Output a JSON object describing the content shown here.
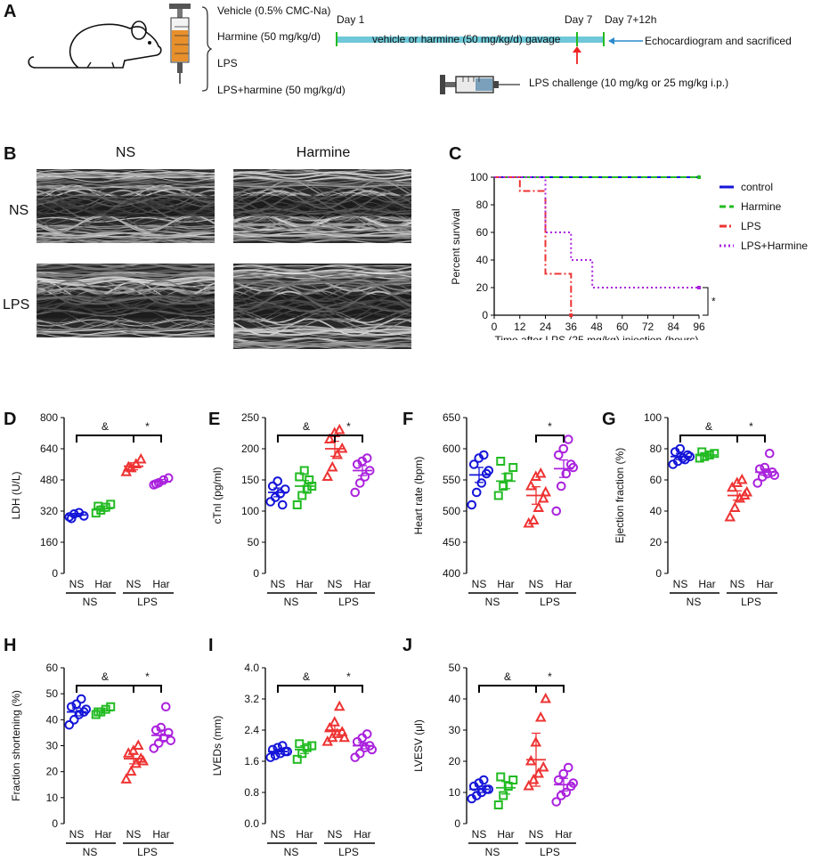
{
  "panel_a": {
    "letter": "A",
    "groups": [
      "Vehicle (0.5% CMC-Na)",
      "Harmine (50 mg/kg/d)",
      "LPS",
      "LPS+harmine (50 mg/kg/d)"
    ],
    "day1": "Day 1",
    "day7": "Day 7",
    "day7_12h": "Day 7+12h",
    "gavage": "vehicle or harmine (50 mg/kg/d) gavage",
    "echo_label": "Echocardiogram and sacrificed",
    "lps_challenge": "LPS challenge (10 mg/kg or 25 mg/kg i.p.)"
  },
  "panel_b": {
    "letter": "B",
    "col_ns": "NS",
    "col_harmine": "Harmine",
    "row_ns": "NS",
    "row_lps": "LPS"
  },
  "colors": {
    "blue": "#1515d9",
    "green": "#22bb22",
    "red": "#ee3333",
    "purple": "#aa22dd",
    "timeline": "#6fc8d8"
  },
  "chart_data": [
    {
      "panel": "C",
      "type": "line",
      "subtype": "kaplan-meier",
      "ylabel": "Percent survival",
      "xlabel": "Time after LPS (25 mg/kg) injection (hours)",
      "xlim": [
        0,
        96
      ],
      "ylim": [
        0,
        100
      ],
      "xticks": [
        0,
        12,
        24,
        36,
        48,
        60,
        72,
        84,
        96
      ],
      "yticks": [
        0,
        20,
        40,
        60,
        80,
        100
      ],
      "significance": "*",
      "series": [
        {
          "name": "control",
          "color": "#1515d9",
          "dash": "solid",
          "steps": [
            [
              0,
              100
            ],
            [
              96,
              100
            ]
          ]
        },
        {
          "name": "Harmine",
          "color": "#22bb22",
          "dash": "dash",
          "steps": [
            [
              0,
              100
            ],
            [
              96,
              100
            ]
          ]
        },
        {
          "name": "LPS",
          "color": "#ee3333",
          "dash": "dashdot",
          "steps": [
            [
              0,
              100
            ],
            [
              12,
              100
            ],
            [
              12,
              90
            ],
            [
              24,
              90
            ],
            [
              24,
              30
            ],
            [
              36,
              30
            ],
            [
              36,
              0
            ]
          ]
        },
        {
          "name": "LPS+Harmine",
          "color": "#aa22dd",
          "dash": "dot",
          "steps": [
            [
              0,
              100
            ],
            [
              24,
              100
            ],
            [
              24,
              60
            ],
            [
              36,
              60
            ],
            [
              36,
              40
            ],
            [
              46,
              40
            ],
            [
              46,
              20
            ],
            [
              96,
              20
            ]
          ]
        }
      ]
    },
    {
      "panel": "D",
      "type": "scatter",
      "ylabel": "LDH (U/L)",
      "ylim": [
        0,
        800
      ],
      "yticks": [
        0,
        160,
        320,
        480,
        640,
        800
      ],
      "categories": [
        "NS",
        "Har",
        "NS",
        "Har"
      ],
      "groups": [
        "NS",
        "LPS"
      ],
      "marks": {
        "left": "&",
        "right": "*"
      },
      "series": [
        {
          "name": "NS-NS",
          "marker": "circle",
          "color": "#1515d9",
          "mean": 300,
          "sem": 8,
          "points": [
            290,
            305,
            312,
            295,
            282
          ]
        },
        {
          "name": "NS-Har",
          "marker": "square",
          "color": "#22bb22",
          "mean": 333,
          "sem": 14,
          "points": [
            310,
            325,
            340,
            355,
            345
          ]
        },
        {
          "name": "LPS-NS",
          "marker": "triangle",
          "color": "#ee3333",
          "mean": 550,
          "sem": 18,
          "points": [
            520,
            540,
            560,
            585,
            545
          ]
        },
        {
          "name": "LPS-Har",
          "marker": "circle",
          "color": "#aa22dd",
          "mean": 470,
          "sem": 12,
          "points": [
            455,
            465,
            480,
            490,
            460
          ]
        }
      ]
    },
    {
      "panel": "E",
      "type": "scatter",
      "ylabel": "cTnI (pg/ml)",
      "ylim": [
        0,
        250
      ],
      "yticks": [
        0,
        50,
        100,
        150,
        200,
        250
      ],
      "categories": [
        "NS",
        "Har",
        "NS",
        "Har"
      ],
      "groups": [
        "NS",
        "LPS"
      ],
      "marks": {
        "left": "&",
        "right": "*"
      },
      "series": [
        {
          "name": "NS-NS",
          "marker": "circle",
          "color": "#1515d9",
          "mean": 130,
          "sem": 7,
          "points": [
            115,
            122,
            128,
            135,
            140,
            148,
            110
          ]
        },
        {
          "name": "NS-Har",
          "marker": "square",
          "color": "#22bb22",
          "mean": 140,
          "sem": 9,
          "points": [
            110,
            125,
            135,
            140,
            155,
            165,
            150
          ]
        },
        {
          "name": "LPS-NS",
          "marker": "triangle",
          "color": "#ee3333",
          "mean": 200,
          "sem": 12,
          "points": [
            155,
            170,
            190,
            200,
            215,
            225,
            230
          ]
        },
        {
          "name": "LPS-Har",
          "marker": "circle",
          "color": "#aa22dd",
          "mean": 165,
          "sem": 8,
          "points": [
            130,
            145,
            155,
            165,
            175,
            180,
            185
          ]
        }
      ]
    },
    {
      "panel": "F",
      "type": "scatter",
      "ylabel": "Heart rate (bpm)",
      "ylim": [
        400,
        650
      ],
      "yticks": [
        400,
        450,
        500,
        550,
        600,
        650
      ],
      "categories": [
        "NS",
        "Har",
        "NS",
        "Har"
      ],
      "groups": [
        "NS",
        "LPS"
      ],
      "marks": {
        "right": "*"
      },
      "series": [
        {
          "name": "NS-NS",
          "marker": "circle",
          "color": "#1515d9",
          "mean": 558,
          "sem": 12,
          "points": [
            510,
            530,
            545,
            560,
            575,
            585,
            590,
            565
          ]
        },
        {
          "name": "NS-Har",
          "marker": "square",
          "color": "#22bb22",
          "mean": 548,
          "sem": 12,
          "points": [
            525,
            540,
            555,
            570,
            580
          ]
        },
        {
          "name": "LPS-NS",
          "marker": "triangle",
          "color": "#ee3333",
          "mean": 525,
          "sem": 14,
          "points": [
            480,
            485,
            505,
            520,
            540,
            555,
            560,
            530
          ]
        },
        {
          "name": "LPS-Har",
          "marker": "circle",
          "color": "#aa22dd",
          "mean": 568,
          "sem": 14,
          "points": [
            500,
            540,
            560,
            575,
            590,
            600,
            615,
            570
          ]
        }
      ]
    },
    {
      "panel": "G",
      "type": "scatter",
      "ylabel": "Ejection fraction (%)",
      "ylim": [
        0,
        100
      ],
      "yticks": [
        0,
        20,
        40,
        60,
        80,
        100
      ],
      "categories": [
        "NS",
        "Har",
        "NS",
        "Har"
      ],
      "groups": [
        "NS",
        "LPS"
      ],
      "marks": {
        "left": "&",
        "right": "*"
      },
      "series": [
        {
          "name": "NS-NS",
          "marker": "circle",
          "color": "#1515d9",
          "mean": 75,
          "sem": 2,
          "points": [
            70,
            72,
            74,
            76,
            78,
            80,
            73,
            75
          ]
        },
        {
          "name": "NS-Har",
          "marker": "square",
          "color": "#22bb22",
          "mean": 76,
          "sem": 1,
          "points": [
            74,
            75,
            76,
            77,
            78
          ]
        },
        {
          "name": "LPS-NS",
          "marker": "triangle",
          "color": "#ee3333",
          "mean": 50,
          "sem": 3,
          "points": [
            36,
            42,
            48,
            50,
            55,
            58,
            60,
            52
          ]
        },
        {
          "name": "LPS-Har",
          "marker": "circle",
          "color": "#aa22dd",
          "mean": 65,
          "sem": 2,
          "points": [
            58,
            62,
            64,
            65,
            67,
            68,
            77,
            63
          ]
        }
      ]
    },
    {
      "panel": "H",
      "type": "scatter",
      "ylabel": "Fraction shortening (%)",
      "ylim": [
        0,
        60
      ],
      "yticks": [
        0,
        10,
        20,
        30,
        40,
        50,
        60
      ],
      "categories": [
        "NS",
        "Har",
        "NS",
        "Har"
      ],
      "groups": [
        "NS",
        "LPS"
      ],
      "marks": {
        "left": "&",
        "right": "*"
      },
      "series": [
        {
          "name": "NS-NS",
          "marker": "circle",
          "color": "#1515d9",
          "mean": 43,
          "sem": 1.5,
          "points": [
            38,
            40,
            42,
            43,
            45,
            46,
            48,
            44
          ]
        },
        {
          "name": "NS-Har",
          "marker": "square",
          "color": "#22bb22",
          "mean": 43.5,
          "sem": 0.8,
          "points": [
            42,
            43,
            44,
            45,
            43
          ]
        },
        {
          "name": "LPS-NS",
          "marker": "triangle",
          "color": "#ee3333",
          "mean": 25,
          "sem": 2,
          "points": [
            17,
            20,
            23,
            25,
            27,
            28,
            30,
            24
          ]
        },
        {
          "name": "LPS-Har",
          "marker": "circle",
          "color": "#aa22dd",
          "mean": 34,
          "sem": 2,
          "points": [
            29,
            31,
            33,
            35,
            36,
            37,
            45,
            32
          ]
        }
      ]
    },
    {
      "panel": "I",
      "type": "scatter",
      "ylabel": "LVEDs (mm)",
      "ylim": [
        0,
        4.0
      ],
      "yticks": [
        0.0,
        0.8,
        1.6,
        2.4,
        3.2,
        4.0
      ],
      "categories": [
        "NS",
        "Har",
        "NS",
        "Har"
      ],
      "groups": [
        "NS",
        "LPS"
      ],
      "marks": {
        "left": "&",
        "right": "*"
      },
      "series": [
        {
          "name": "NS-NS",
          "marker": "circle",
          "color": "#1515d9",
          "mean": 1.85,
          "sem": 0.06,
          "points": [
            1.7,
            1.75,
            1.8,
            1.85,
            1.9,
            1.95,
            2.0,
            1.85
          ]
        },
        {
          "name": "NS-Har",
          "marker": "square",
          "color": "#22bb22",
          "mean": 1.9,
          "sem": 0.1,
          "points": [
            1.65,
            1.8,
            1.95,
            2.0,
            2.05
          ]
        },
        {
          "name": "LPS-NS",
          "marker": "triangle",
          "color": "#ee3333",
          "mean": 2.4,
          "sem": 0.12,
          "points": [
            2.1,
            2.2,
            2.3,
            2.35,
            2.45,
            2.6,
            3.0,
            2.2
          ]
        },
        {
          "name": "LPS-Har",
          "marker": "circle",
          "color": "#aa22dd",
          "mean": 2.0,
          "sem": 0.08,
          "points": [
            1.7,
            1.8,
            1.95,
            2.0,
            2.1,
            2.2,
            2.3,
            1.9
          ]
        }
      ]
    },
    {
      "panel": "J",
      "type": "scatter",
      "ylabel": "LVESV (μl)",
      "ylim": [
        0,
        50
      ],
      "yticks": [
        0,
        10,
        20,
        30,
        40,
        50
      ],
      "categories": [
        "NS",
        "Har",
        "NS",
        "Har"
      ],
      "groups": [
        "NS",
        "LPS"
      ],
      "marks": {
        "left": "&",
        "right": "*"
      },
      "series": [
        {
          "name": "NS-NS",
          "marker": "circle",
          "color": "#1515d9",
          "mean": 11,
          "sem": 1,
          "points": [
            8,
            9,
            10,
            11,
            12,
            13,
            14,
            11
          ]
        },
        {
          "name": "NS-Har",
          "marker": "square",
          "color": "#22bb22",
          "mean": 11.5,
          "sem": 2,
          "points": [
            6,
            9,
            12,
            14,
            15
          ]
        },
        {
          "name": "LPS-NS",
          "marker": "triangle",
          "color": "#ee3333",
          "mean": 20.5,
          "sem": 8.5,
          "points": [
            12,
            14,
            16,
            18,
            20,
            26,
            34,
            40
          ]
        },
        {
          "name": "LPS-Har",
          "marker": "circle",
          "color": "#aa22dd",
          "mean": 12.5,
          "sem": 2,
          "points": [
            7,
            9,
            10,
            12,
            14,
            16,
            18,
            13
          ]
        }
      ]
    }
  ]
}
